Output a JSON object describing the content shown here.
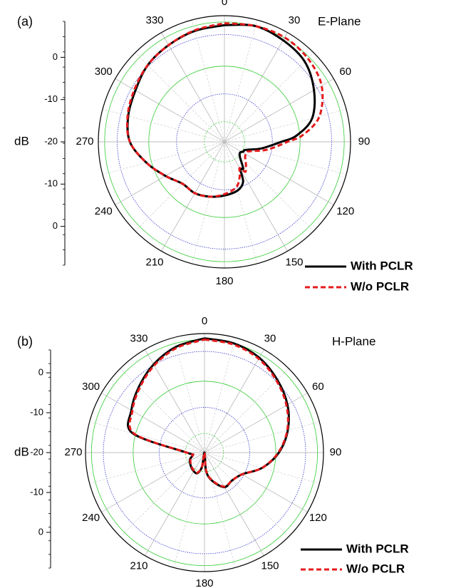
{
  "chart_data": [
    {
      "type": "polar",
      "panel_label": "(a)",
      "title": "E-Plane",
      "ylabel": "dB",
      "angle_ticks": [
        "0",
        "30",
        "60",
        "90",
        "120",
        "150",
        "180",
        "210",
        "240",
        "270",
        "300",
        "330"
      ],
      "radial_axis": {
        "ticks": [
          "0",
          "-10",
          "-20",
          "-10",
          "0"
        ],
        "range": [
          -20,
          0
        ]
      },
      "series": [
        {
          "name": "With PCLR",
          "color": "#000000",
          "dash": "solid",
          "angle_deg": [
            0,
            15,
            30,
            45,
            60,
            75,
            85,
            90,
            100,
            108,
            113,
            117,
            125,
            135,
            145,
            150,
            155,
            165,
            180,
            195,
            210,
            225,
            240,
            255,
            270,
            285,
            300,
            315,
            330,
            345,
            360
          ],
          "gain_db": [
            -1.5,
            -1,
            -1.4,
            -2,
            -3.6,
            -5.6,
            -8.5,
            -11,
            -14,
            -16,
            -16.6,
            -16.6,
            -17,
            -16.5,
            -14.8,
            -15,
            -13,
            -12,
            -11.5,
            -11,
            -10.6,
            -10.6,
            -9.2,
            -7.2,
            -5,
            -4.2,
            -3.7,
            -2.8,
            -2.3,
            -1.8,
            -1.5
          ]
        },
        {
          "name": "W/o PCLR",
          "color": "#e41a1c",
          "dash": "dashed",
          "angle_deg": [
            0,
            15,
            30,
            45,
            60,
            75,
            85,
            90,
            100,
            108,
            113,
            117,
            125,
            135,
            145,
            150,
            155,
            165,
            180,
            195,
            210,
            225,
            240,
            255,
            270,
            285,
            300,
            315,
            330,
            345,
            360
          ],
          "gain_db": [
            -1.2,
            -1,
            -0.9,
            -1.3,
            -2.2,
            -4.4,
            -7.5,
            -10,
            -13,
            -15.3,
            -16,
            -16,
            -16,
            -15.2,
            -14.2,
            -15.2,
            -14.2,
            -12.6,
            -11.7,
            -11,
            -10.6,
            -10.6,
            -9.2,
            -7.2,
            -5,
            -4.1,
            -3.5,
            -2.8,
            -2.3,
            -1.7,
            -1.2
          ]
        }
      ]
    },
    {
      "type": "polar",
      "panel_label": "(b)",
      "title": "H-Plane",
      "ylabel": "dB",
      "angle_ticks": [
        "0",
        "30",
        "60",
        "90",
        "120",
        "150",
        "180",
        "210",
        "240",
        "270",
        "300",
        "330"
      ],
      "radial_axis": {
        "ticks": [
          "0",
          "-10",
          "-20",
          "-10",
          "0"
        ],
        "range": [
          -20,
          0
        ]
      },
      "series": [
        {
          "name": "With PCLR",
          "color": "#000000",
          "dash": "solid",
          "angle_deg": [
            0,
            15,
            30,
            45,
            60,
            75,
            90,
            105,
            120,
            135,
            150,
            165,
            175,
            180,
            190,
            200,
            215,
            230,
            245,
            260,
            270,
            285,
            300,
            315,
            330,
            345,
            360
          ],
          "gain_db": [
            -0.8,
            -1,
            -1.6,
            -2.7,
            -3.9,
            -5.5,
            -7.5,
            -10,
            -12.7,
            -13.4,
            -13.3,
            -15.1,
            -16.9,
            -20,
            -17.5,
            -16.3,
            -16.5,
            -16.9,
            -17.3,
            -18,
            -17,
            -7.5,
            -5.8,
            -4.4,
            -2.9,
            -1.6,
            -0.8
          ]
        },
        {
          "name": "W/o PCLR",
          "color": "#e41a1c",
          "dash": "dashed",
          "angle_deg": [
            0,
            15,
            30,
            45,
            60,
            75,
            90,
            105,
            120,
            135,
            150,
            165,
            175,
            180,
            190,
            200,
            215,
            230,
            245,
            260,
            270,
            285,
            300,
            315,
            330,
            345,
            360
          ],
          "gain_db": [
            -1,
            -1.2,
            -1.8,
            -2.9,
            -4.1,
            -5.6,
            -7.6,
            -10,
            -12.7,
            -13.4,
            -13.4,
            -15.2,
            -17,
            -20,
            -17.6,
            -16.4,
            -16.6,
            -17,
            -17.4,
            -18,
            -17,
            -7.8,
            -6,
            -4.6,
            -3.1,
            -1.8,
            -1
          ]
        }
      ]
    }
  ]
}
